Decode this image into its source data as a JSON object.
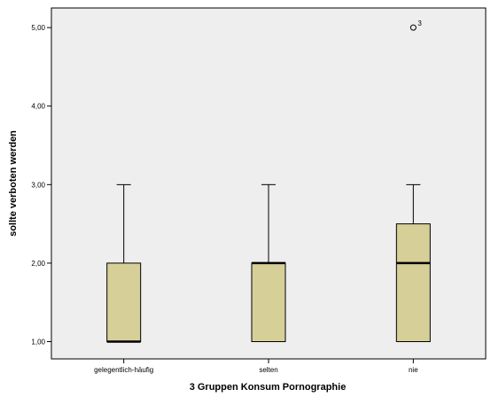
{
  "chart_data": {
    "type": "boxplot",
    "xlabel": "3 Gruppen Konsum Pornographie",
    "ylabel": "sollte verboten werden",
    "ylim": [
      0.78,
      5.25
    ],
    "y_ticks": [
      "1,00",
      "2,00",
      "3,00",
      "4,00",
      "5,00"
    ],
    "y_tick_values": [
      1,
      2,
      3,
      4,
      5
    ],
    "grid": false,
    "colors": {
      "plot_bg": "#eeeeee",
      "box_fill": "#d6cf98",
      "stroke": "#000000"
    },
    "categories": [
      "gelegentlich-häufig",
      "selten",
      "nie"
    ],
    "boxes": [
      {
        "category": "gelegentlich-häufig",
        "min": 1,
        "q1": 1,
        "median": 1,
        "q3": 2,
        "max": 3,
        "outliers": []
      },
      {
        "category": "selten",
        "min": 1,
        "q1": 1,
        "median": 2,
        "q3": 2,
        "max": 3,
        "outliers": []
      },
      {
        "category": "nie",
        "min": 1,
        "q1": 1,
        "median": 2,
        "q3": 2.5,
        "max": 3,
        "outliers": [
          {
            "value": 5,
            "label": "3"
          }
        ]
      }
    ]
  }
}
